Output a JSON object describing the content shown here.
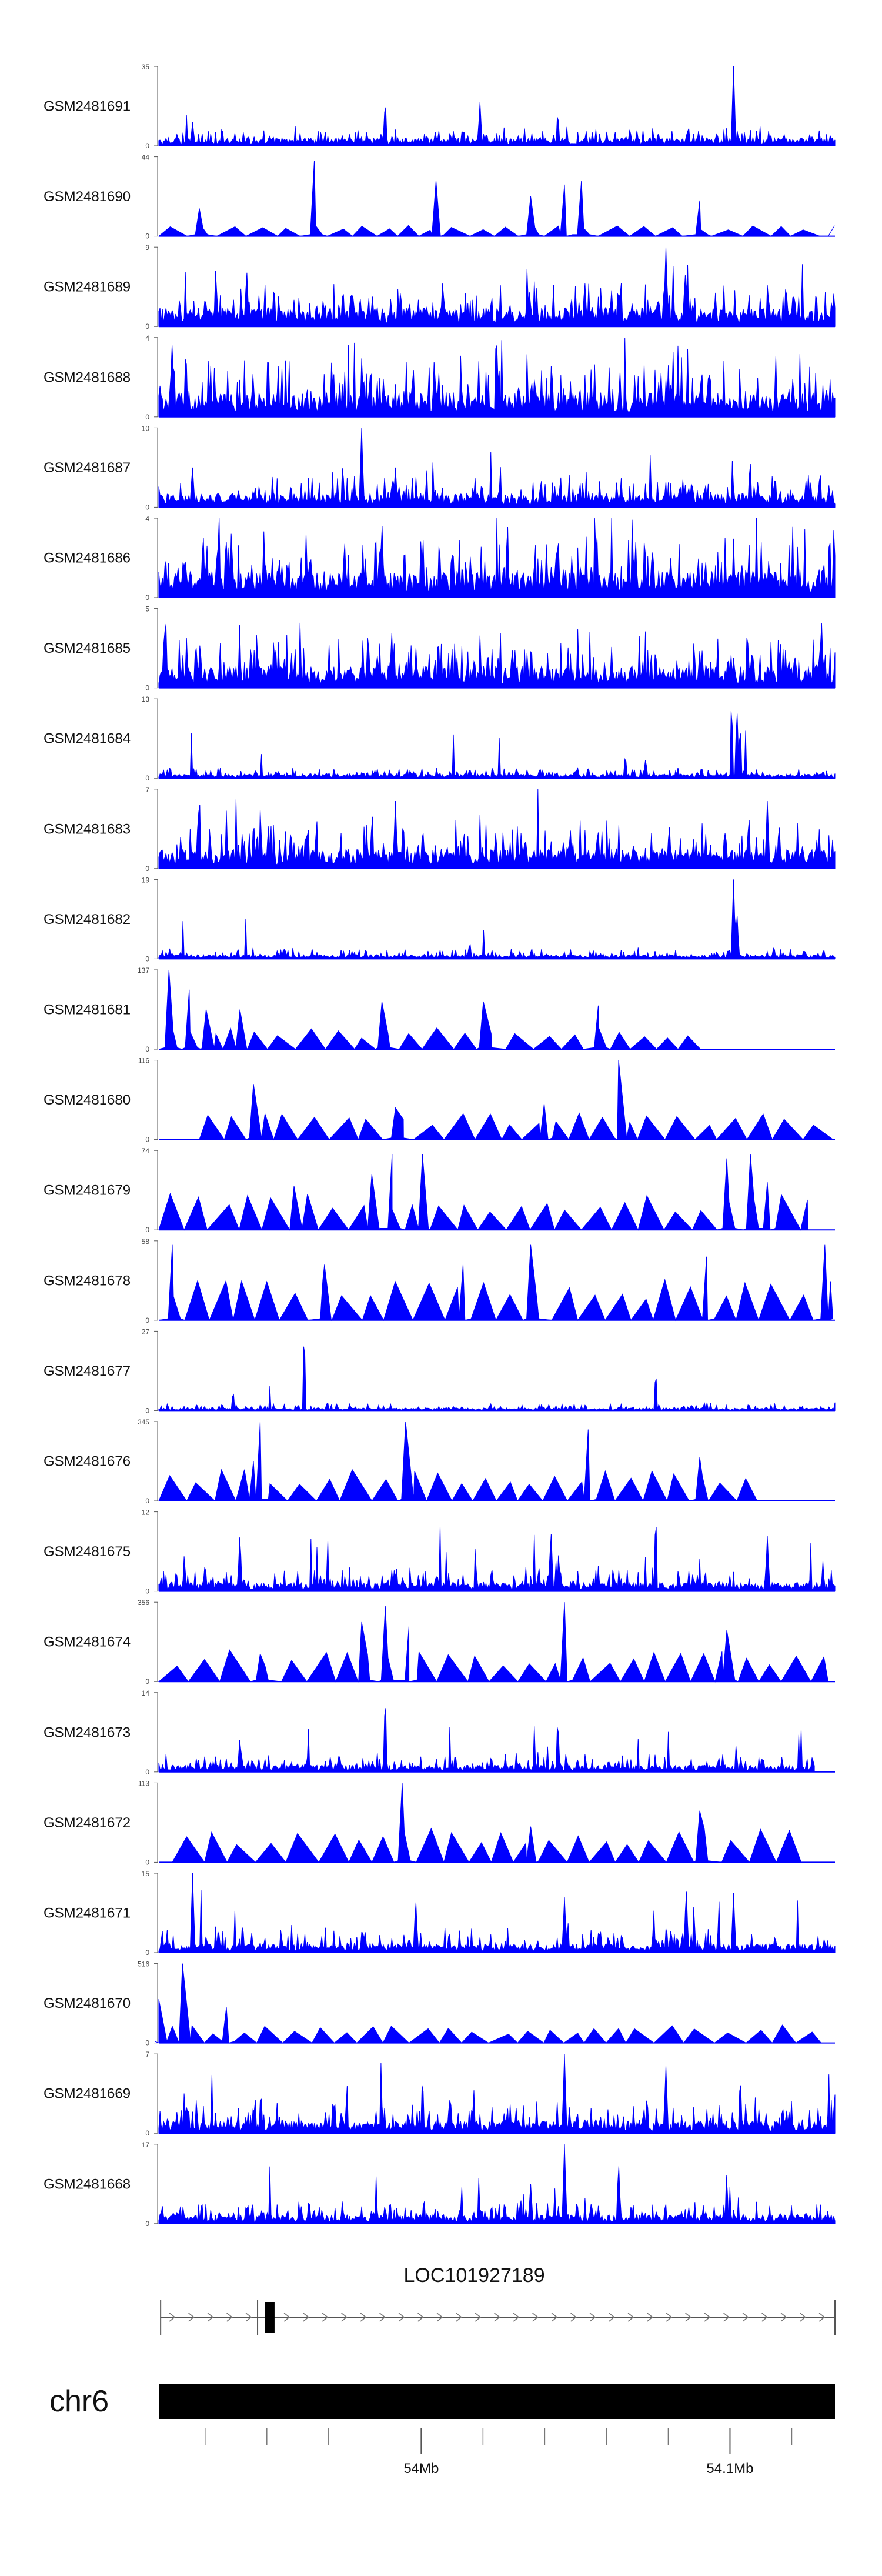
{
  "chart_data": {
    "type": "area",
    "x_range": [
      53915000,
      54134000
    ],
    "track_color": "#0000ff",
    "tracks": [
      {
        "name": "GSM2481691",
        "ymax": 35,
        "style": "dense",
        "mean": 0.09,
        "noise": 0.16,
        "rare": 0.01,
        "peaks": [
          [
            0.335,
            0.6
          ],
          [
            0.475,
            0.55
          ],
          [
            0.59,
            0.45
          ],
          [
            0.85,
            1.0
          ],
          [
            0.05,
            0.3
          ]
        ]
      },
      {
        "name": "GSM2481690",
        "ymax": 44,
        "style": "sparse",
        "start": 0.0,
        "end": 0.99,
        "base": 0.12,
        "peaks": [
          [
            0.23,
            0.95
          ],
          [
            0.06,
            0.35
          ],
          [
            0.41,
            0.7
          ],
          [
            0.6,
            0.65
          ],
          [
            0.625,
            0.7
          ],
          [
            0.55,
            0.5
          ],
          [
            0.8,
            0.45
          ]
        ]
      },
      {
        "name": "GSM2481689",
        "ymax": 9,
        "style": "dense",
        "mean": 0.22,
        "noise": 0.32,
        "rare": 0.03,
        "peaks": [
          [
            0.75,
            1.0
          ],
          [
            0.13,
            0.75
          ],
          [
            0.42,
            0.6
          ],
          [
            0.63,
            0.6
          ]
        ]
      },
      {
        "name": "GSM2481688",
        "ymax": 4,
        "style": "dense",
        "mean": 0.28,
        "noise": 0.45,
        "rare": 0.06,
        "peaks": [
          [
            0.02,
            1.0
          ],
          [
            0.5,
            0.9
          ]
        ]
      },
      {
        "name": "GSM2481687",
        "ymax": 10,
        "style": "dense",
        "mean": 0.16,
        "noise": 0.28,
        "rare": 0.02,
        "peaks": [
          [
            0.3,
            1.0
          ],
          [
            0.05,
            0.5
          ],
          [
            0.35,
            0.5
          ]
        ]
      },
      {
        "name": "GSM2481686",
        "ymax": 4,
        "style": "dense",
        "mean": 0.3,
        "noise": 0.45,
        "rare": 0.05,
        "peaks": [
          [
            0.33,
            1.0
          ],
          [
            0.1,
            0.7
          ]
        ]
      },
      {
        "name": "GSM2481685",
        "ymax": 5,
        "style": "dense",
        "mean": 0.25,
        "noise": 0.4,
        "rare": 0.05,
        "peaks": [
          [
            0.01,
            1.0
          ],
          [
            0.98,
            0.9
          ]
        ]
      },
      {
        "name": "GSM2481684",
        "ymax": 13,
        "style": "dense",
        "mean": 0.05,
        "noise": 0.09,
        "rare": 0.01,
        "peaks": [
          [
            0.847,
            1.0
          ],
          [
            0.855,
            0.9
          ],
          [
            0.86,
            0.7
          ],
          [
            0.69,
            0.3
          ],
          [
            0.72,
            0.25
          ]
        ]
      },
      {
        "name": "GSM2481683",
        "ymax": 7,
        "style": "dense",
        "mean": 0.22,
        "noise": 0.38,
        "rare": 0.04,
        "peaks": [
          [
            0.06,
            1.0
          ],
          [
            0.35,
            0.85
          ],
          [
            0.9,
            0.85
          ]
        ]
      },
      {
        "name": "GSM2481682",
        "ymax": 19,
        "style": "dense",
        "mean": 0.05,
        "noise": 0.09,
        "rare": 0.01,
        "peaks": [
          [
            0.85,
            1.0
          ],
          [
            0.855,
            0.6
          ],
          [
            0.46,
            0.22
          ]
        ]
      },
      {
        "name": "GSM2481681",
        "ymax": 137,
        "style": "sparse",
        "start": 0.0,
        "end": 0.83,
        "base": 0.25,
        "peaks": [
          [
            0.015,
            1.0
          ],
          [
            0.045,
            0.75
          ],
          [
            0.07,
            0.5
          ],
          [
            0.12,
            0.5
          ],
          [
            0.33,
            0.6
          ],
          [
            0.48,
            0.6
          ],
          [
            0.65,
            0.55
          ]
        ]
      },
      {
        "name": "GSM2481680",
        "ymax": 116,
        "style": "sparse",
        "start": 0.06,
        "end": 1.0,
        "base": 0.3,
        "peaks": [
          [
            0.14,
            0.7
          ],
          [
            0.68,
            1.0
          ],
          [
            0.57,
            0.45
          ],
          [
            0.35,
            0.4
          ]
        ]
      },
      {
        "name": "GSM2481679",
        "ymax": 74,
        "style": "sparse",
        "start": 0.0,
        "end": 0.96,
        "base": 0.4,
        "peaks": [
          [
            0.345,
            0.95
          ],
          [
            0.39,
            0.95
          ],
          [
            0.84,
            0.9
          ],
          [
            0.875,
            0.95
          ],
          [
            0.315,
            0.7
          ],
          [
            0.9,
            0.6
          ],
          [
            0.2,
            0.55
          ]
        ]
      },
      {
        "name": "GSM2481678",
        "ymax": 58,
        "style": "sparse",
        "start": 0.0,
        "end": 0.99,
        "base": 0.45,
        "peaks": [
          [
            0.02,
            0.95
          ],
          [
            0.55,
            0.95
          ],
          [
            0.985,
            0.95
          ],
          [
            0.245,
            0.7
          ],
          [
            0.81,
            0.8
          ],
          [
            0.45,
            0.7
          ]
        ]
      },
      {
        "name": "GSM2481677",
        "ymax": 27,
        "style": "dense",
        "mean": 0.03,
        "noise": 0.07,
        "rare": 0.005,
        "peaks": [
          [
            0.215,
            1.0
          ],
          [
            0.735,
            0.5
          ],
          [
            0.11,
            0.25
          ]
        ]
      },
      {
        "name": "GSM2481676",
        "ymax": 345,
        "style": "sparse",
        "start": 0.0,
        "end": 0.92,
        "base": 0.35,
        "peaks": [
          [
            0.15,
            1.0
          ],
          [
            0.365,
            1.0
          ],
          [
            0.635,
            0.9
          ],
          [
            0.14,
            0.5
          ],
          [
            0.8,
            0.55
          ]
        ]
      },
      {
        "name": "GSM2481675",
        "ymax": 12,
        "style": "dense",
        "mean": 0.1,
        "noise": 0.22,
        "rare": 0.02,
        "peaks": [
          [
            0.735,
            1.0
          ],
          [
            0.12,
            0.75
          ],
          [
            0.58,
            0.8
          ],
          [
            0.9,
            0.7
          ]
        ]
      },
      {
        "name": "GSM2481674",
        "ymax": 356,
        "style": "sparse",
        "start": 0.0,
        "end": 0.99,
        "base": 0.35,
        "peaks": [
          [
            0.6,
            1.0
          ],
          [
            0.335,
            0.95
          ],
          [
            0.3,
            0.75
          ],
          [
            0.37,
            0.7
          ],
          [
            0.84,
            0.65
          ],
          [
            0.15,
            0.35
          ]
        ]
      },
      {
        "name": "GSM2481673",
        "ymax": 14,
        "style": "dense",
        "mean": 0.08,
        "noise": 0.18,
        "rare": 0.02,
        "end": 0.97,
        "peaks": [
          [
            0.335,
            1.0
          ],
          [
            0.59,
            0.7
          ],
          [
            0.12,
            0.45
          ]
        ]
      },
      {
        "name": "GSM2481672",
        "ymax": 113,
        "style": "sparse",
        "start": 0.02,
        "end": 0.96,
        "base": 0.4,
        "peaks": [
          [
            0.36,
            1.0
          ],
          [
            0.8,
            0.65
          ],
          [
            0.55,
            0.45
          ]
        ]
      },
      {
        "name": "GSM2481671",
        "ymax": 15,
        "style": "dense",
        "mean": 0.1,
        "noise": 0.26,
        "rare": 0.02,
        "peaks": [
          [
            0.05,
            1.0
          ],
          [
            0.38,
            0.7
          ],
          [
            0.6,
            0.7
          ],
          [
            0.78,
            0.85
          ],
          [
            0.85,
            0.75
          ]
        ]
      },
      {
        "name": "GSM2481670",
        "ymax": 516,
        "style": "sparse",
        "start": 0.0,
        "end": 0.99,
        "base": 0.2,
        "peaks": [
          [
            0.035,
            1.0
          ],
          [
            0.0,
            0.55
          ],
          [
            0.1,
            0.45
          ]
        ]
      },
      {
        "name": "GSM2481669",
        "ymax": 7,
        "style": "dense",
        "mean": 0.14,
        "noise": 0.28,
        "rare": 0.025,
        "peaks": [
          [
            0.6,
            1.0
          ],
          [
            0.75,
            0.85
          ],
          [
            0.39,
            0.75
          ],
          [
            0.86,
            0.75
          ]
        ]
      },
      {
        "name": "GSM2481668",
        "ymax": 17,
        "style": "dense",
        "mean": 0.1,
        "noise": 0.2,
        "rare": 0.02,
        "peaks": [
          [
            0.6,
            1.0
          ],
          [
            0.68,
            0.8
          ],
          [
            0.55,
            0.5
          ],
          [
            0.84,
            0.55
          ]
        ]
      }
    ],
    "gene": {
      "name": "LOC101927189",
      "x_start": 53915600,
      "x_end": 54134000,
      "exon_start": 53949400,
      "exon_end": 53952500,
      "strand": "+"
    },
    "ideogram": {
      "chromosome": "chr6",
      "tick_labels": [
        {
          "value": 54000000,
          "label": "54Mb"
        },
        {
          "value": 54100000,
          "label": "54.1Mb"
        }
      ]
    }
  }
}
